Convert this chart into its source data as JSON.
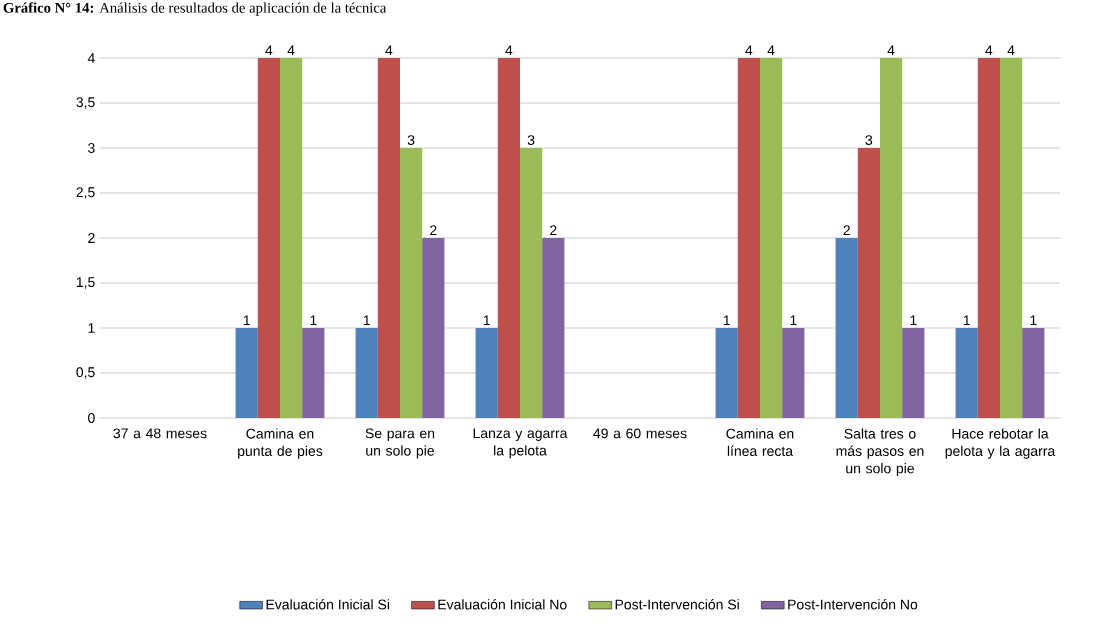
{
  "chart_data": {
    "type": "bar",
    "title": "**Gráfico N° 14:** Análisis de resultados de aplicación de la técnica",
    "categories": [
      "37 a 48 meses",
      "Camina en punta de pies",
      "Se para en un solo pie",
      "Lanza y agarra la pelota",
      "49 a 60 meses",
      "Camina en línea recta",
      "Salta tres o más pasos en un solo pie",
      "Hace rebotar la pelota y la agarra"
    ],
    "series": [
      {
        "name": "Evaluación Inicial Si",
        "color": "#4f81bd",
        "values": [
          null,
          1,
          1,
          1,
          null,
          1,
          2,
          1
        ],
        "value_labels": [
          null,
          "1",
          "1",
          "1",
          null,
          "1",
          "2",
          "1"
        ]
      },
      {
        "name": "Evaluación Inicial No",
        "color": "#c0504d",
        "values": [
          null,
          4,
          4,
          4,
          null,
          4,
          3,
          4
        ],
        "value_labels": [
          null,
          "4",
          "4",
          "4",
          null,
          "4",
          "3",
          "4"
        ]
      },
      {
        "name": "Post-Intervención Si",
        "color": "#9bbb59",
        "values": [
          null,
          4,
          3,
          3,
          null,
          4,
          4,
          4
        ],
        "value_labels": [
          null,
          "4",
          "3",
          "3",
          null,
          "4",
          "4",
          "4"
        ]
      },
      {
        "name": "Post-Intervención No",
        "color": "#8064a2",
        "values": [
          null,
          1,
          2,
          2,
          null,
          1,
          1,
          1
        ],
        "value_labels": [
          null,
          "1",
          "2",
          "2",
          null,
          "1",
          "1",
          "1"
        ]
      }
    ],
    "ylim": [
      0,
      4
    ],
    "yticks": [
      0,
      {
        "value": 0.5,
        "label": "0,5"
      },
      1,
      {
        "value": 1.5,
        "label": "1,5"
      },
      2,
      {
        "value": 2.5,
        "label": "2,5"
      },
      3,
      {
        "value": 3.5,
        "label": "3,5"
      },
      4
    ],
    "grid": "y",
    "legend": "bottom"
  }
}
